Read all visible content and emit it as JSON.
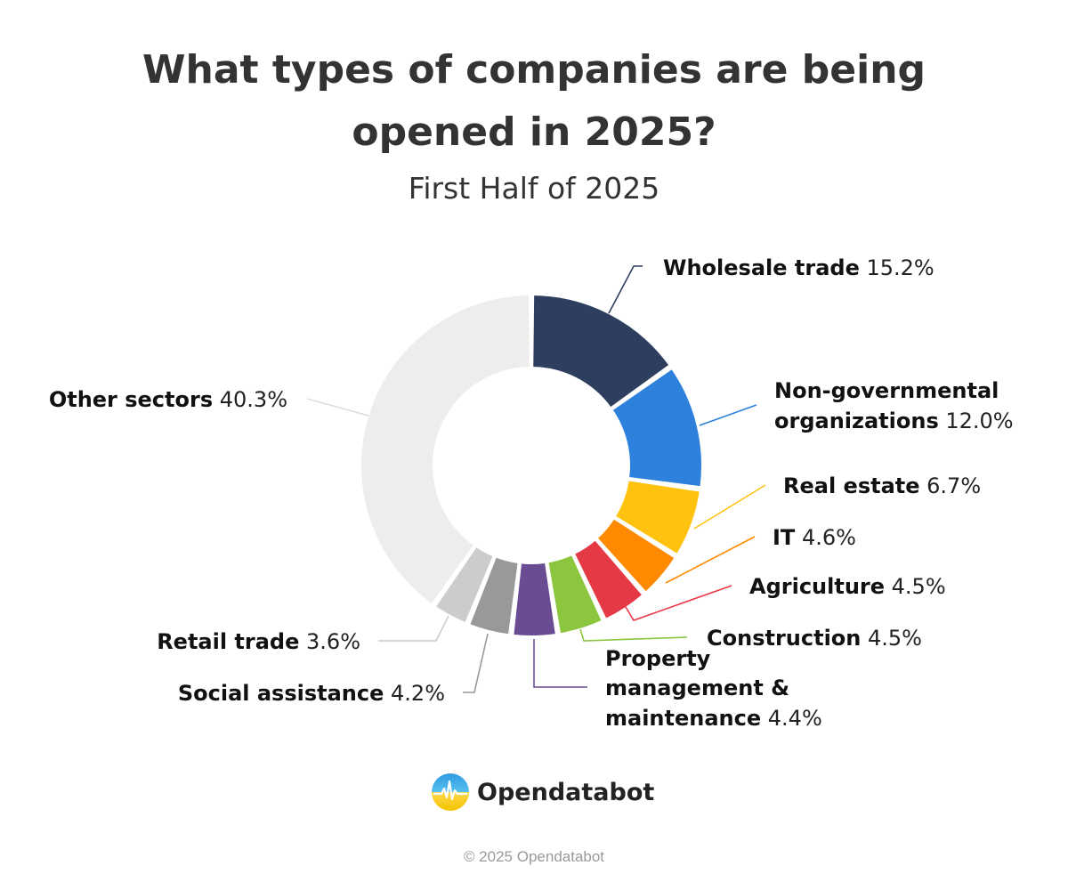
{
  "title": "What types of companies are being opened in 2025?",
  "subtitle": "First Half of 2025",
  "brand": {
    "name": "Opendatabot",
    "icon": "opendatabot-logo-icon"
  },
  "footer": "© 2025 Opendatabot",
  "chart_data": {
    "type": "pie",
    "variant": "donut",
    "title": "What types of companies are being opened in 2025?",
    "subtitle": "First Half of 2025",
    "unit": "%",
    "slices": [
      {
        "label": "Wholesale trade",
        "value": 15.2,
        "display": "15.2%",
        "color": "#2e3e5f"
      },
      {
        "label": "Non-governmental organizations",
        "value": 12.0,
        "display": "12.0%",
        "color": "#2d80dc"
      },
      {
        "label": "Real estate",
        "value": 6.7,
        "display": "6.7%",
        "color": "#ffc20e"
      },
      {
        "label": "IT",
        "value": 4.6,
        "display": "4.6%",
        "color": "#ff8a00"
      },
      {
        "label": "Agriculture",
        "value": 4.5,
        "display": "4.5%",
        "color": "#e63946"
      },
      {
        "label": "Construction",
        "value": 4.5,
        "display": "4.5%",
        "color": "#8cc63f"
      },
      {
        "label": "Property management & maintenance",
        "value": 4.4,
        "display": "4.4%",
        "color": "#6a4c93"
      },
      {
        "label": "Social assistance",
        "value": 4.2,
        "display": "4.2%",
        "color": "#999999"
      },
      {
        "label": "Retail trade",
        "value": 3.6,
        "display": "3.6%",
        "color": "#cccccc"
      },
      {
        "label": "Other sectors",
        "value": 40.3,
        "display": "40.3%",
        "color": "#ededed"
      }
    ]
  }
}
